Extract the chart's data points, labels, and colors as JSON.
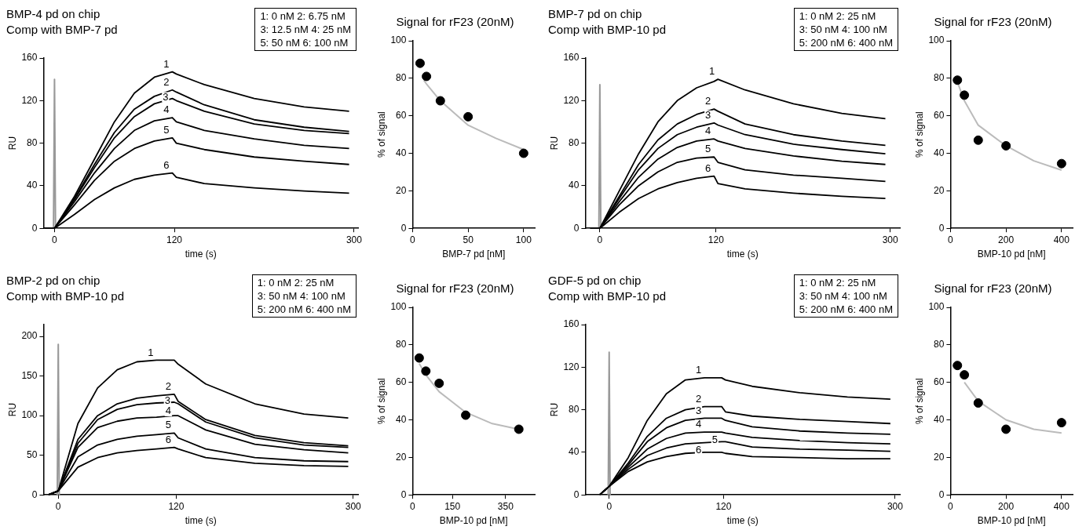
{
  "chart_data": [
    {
      "type": "line",
      "title": "BMP-4 pd on chip",
      "subtitle": "Comp with BMP-7 pd",
      "xlabel": "time (s)",
      "ylabel": "RU",
      "annotations": [
        "1: 0 nM 2: 6.75 nM",
        "3: 12.5 nM 4: 25 nM",
        "5: 50 nM 6: 100 nM"
      ],
      "x": [
        -10,
        0,
        20,
        40,
        60,
        80,
        100,
        118,
        122,
        150,
        200,
        250,
        295
      ],
      "xlim": [
        -11,
        304
      ],
      "xticks": [
        0,
        120,
        300
      ],
      "ylim": [
        0,
        160
      ],
      "yticks": [
        0,
        40,
        80,
        120,
        160
      ],
      "marker": "none",
      "line_style": "solid",
      "series": [
        {
          "name": "1",
          "color": "#000000",
          "values": [
            0,
            0,
            30,
            65,
            100,
            127,
            142,
            147,
            145,
            135,
            122,
            114,
            110
          ]
        },
        {
          "name": "2",
          "color": "#000000",
          "values": [
            0,
            0,
            28,
            60,
            90,
            112,
            124,
            130,
            128,
            116,
            102,
            95,
            91
          ]
        },
        {
          "name": "3",
          "color": "#000000",
          "values": [
            0,
            0,
            27,
            57,
            85,
            105,
            117,
            122,
            120,
            110,
            98,
            92,
            89
          ]
        },
        {
          "name": "4",
          "color": "#000000",
          "values": [
            0,
            0,
            25,
            52,
            75,
            92,
            101,
            104,
            100,
            92,
            84,
            78,
            75
          ]
        },
        {
          "name": "5",
          "color": "#000000",
          "values": [
            0,
            0,
            22,
            45,
            63,
            75,
            82,
            85,
            80,
            74,
            67,
            63,
            60
          ]
        },
        {
          "name": "6",
          "color": "#000000",
          "values": [
            0,
            0,
            13,
            27,
            38,
            46,
            50,
            52,
            48,
            42,
            38,
            35,
            33
          ]
        },
        {
          "color": "#999999",
          "x": [
            -1,
            0,
            1
          ],
          "values": [
            0,
            140,
            0
          ]
        }
      ]
    },
    {
      "type": "scatter",
      "title": "Signal for rF23 (20nM)",
      "xlabel": "BMP-7 pd [nM]",
      "ylabel": "% of signal",
      "xlim": [
        0,
        110
      ],
      "xticks": [
        0,
        50,
        100
      ],
      "ylim": [
        0,
        100
      ],
      "yticks": [
        0,
        20,
        40,
        60,
        80,
        100
      ],
      "marker": "circle",
      "series": [
        {
          "color": "#000000",
          "x": [
            6.75,
            12.5,
            25,
            50,
            100
          ],
          "values": [
            88,
            81,
            68,
            59.5,
            40
          ]
        },
        {
          "type": "line",
          "marker": "none",
          "color": "#bbbbbb",
          "x": [
            10,
            12.5,
            25,
            50,
            75,
            100
          ],
          "values": [
            79,
            77,
            68,
            55,
            48,
            42
          ]
        }
      ]
    },
    {
      "type": "line",
      "title": "BMP-7 pd on chip",
      "subtitle": "Comp with BMP-10 pd",
      "xlabel": "time (s)",
      "ylabel": "RU",
      "annotations": [
        "1: 0 nM 2: 25 nM",
        "3: 50 nM 4: 100 nM",
        "5: 200 nM 6: 400 nM"
      ],
      "x": [
        -10,
        0,
        20,
        40,
        60,
        80,
        100,
        118,
        122,
        150,
        200,
        250,
        295
      ],
      "xlim": [
        -15,
        310
      ],
      "xticks": [
        0,
        120,
        300
      ],
      "ylim": [
        0,
        160
      ],
      "yticks": [
        0,
        40,
        80,
        120,
        160
      ],
      "marker": "none",
      "line_style": "solid",
      "series": [
        {
          "name": "1",
          "color": "#000000",
          "values": [
            0,
            0,
            35,
            70,
            100,
            120,
            132,
            138,
            140,
            130,
            117,
            108,
            103
          ]
        },
        {
          "name": "2",
          "color": "#000000",
          "values": [
            0,
            0,
            30,
            60,
            83,
            98,
            107,
            112,
            110,
            98,
            88,
            82,
            78
          ]
        },
        {
          "name": "3",
          "color": "#000000",
          "values": [
            0,
            0,
            28,
            55,
            75,
            88,
            95,
            99,
            97,
            88,
            79,
            74,
            70
          ]
        },
        {
          "name": "4",
          "color": "#000000",
          "values": [
            0,
            0,
            25,
            48,
            65,
            76,
            82,
            84,
            82,
            75,
            68,
            63,
            60
          ]
        },
        {
          "name": "5",
          "color": "#000000",
          "values": [
            0,
            0,
            22,
            40,
            53,
            62,
            66,
            67,
            62,
            55,
            50,
            47,
            44
          ]
        },
        {
          "name": "6",
          "color": "#000000",
          "values": [
            0,
            0,
            15,
            28,
            37,
            43,
            47,
            49,
            42,
            37,
            33,
            30,
            28
          ]
        },
        {
          "color": "#999999",
          "x": [
            -1,
            0,
            1
          ],
          "values": [
            0,
            135,
            0
          ]
        }
      ]
    },
    {
      "type": "scatter",
      "title": "Signal for rF23 (20nM)",
      "xlabel": "BMP-10 pd [nM]",
      "ylabel": "% of signal",
      "xlim": [
        0,
        440
      ],
      "xticks": [
        0,
        200,
        400
      ],
      "ylim": [
        0,
        100
      ],
      "yticks": [
        0,
        20,
        40,
        60,
        80,
        100
      ],
      "marker": "circle",
      "series": [
        {
          "color": "#000000",
          "x": [
            25,
            50,
            100,
            200,
            400
          ],
          "values": [
            79,
            71,
            47,
            44,
            34.5
          ]
        },
        {
          "type": "line",
          "marker": "none",
          "color": "#bbbbbb",
          "x": [
            25,
            50,
            100,
            200,
            300,
            400
          ],
          "values": [
            78,
            68,
            55,
            44,
            36,
            31
          ]
        }
      ]
    },
    {
      "type": "line",
      "title": "BMP-2 pd on chip",
      "subtitle": "Comp with BMP-10 pd",
      "xlabel": "time (s)",
      "ylabel": "RU",
      "annotations": [
        "1: 0 nM 2: 25 nM",
        "3: 50 nM 4: 100 nM",
        "5: 200 nM 6: 400 nM"
      ],
      "x": [
        -10,
        0,
        20,
        40,
        60,
        80,
        100,
        118,
        122,
        150,
        200,
        250,
        295
      ],
      "xlim": [
        -15,
        305
      ],
      "xticks": [
        0,
        120,
        300
      ],
      "ylim": [
        0,
        215
      ],
      "yticks": [
        0,
        50,
        100,
        150,
        200
      ],
      "marker": "none",
      "line_style": "solid",
      "series": [
        {
          "name": "1",
          "color": "#000000",
          "values": [
            0,
            5,
            90,
            135,
            158,
            168,
            170,
            170,
            165,
            140,
            115,
            102,
            97
          ]
        },
        {
          "name": "2",
          "color": "#000000",
          "values": [
            0,
            5,
            70,
            100,
            115,
            122,
            125,
            127,
            118,
            95,
            75,
            66,
            62
          ]
        },
        {
          "name": "3",
          "color": "#000000",
          "values": [
            0,
            5,
            65,
            95,
            108,
            114,
            116,
            117,
            115,
            92,
            72,
            63,
            60
          ]
        },
        {
          "name": "4",
          "color": "#000000",
          "values": [
            0,
            5,
            60,
            85,
            93,
            97,
            98,
            100,
            100,
            82,
            64,
            57,
            53
          ]
        },
        {
          "name": "5",
          "color": "#000000",
          "values": [
            0,
            5,
            48,
            63,
            70,
            74,
            76,
            78,
            72,
            58,
            47,
            43,
            42
          ]
        },
        {
          "name": "6",
          "color": "#000000",
          "values": [
            0,
            5,
            35,
            47,
            53,
            56,
            58,
            60,
            58,
            47,
            40,
            37,
            36
          ]
        },
        {
          "color": "#999999",
          "x": [
            -1,
            0,
            1
          ],
          "values": [
            0,
            190,
            0
          ]
        }
      ]
    },
    {
      "type": "scatter",
      "title": "Signal for rF23 (20nM)",
      "xlabel": "BMP-10 pd [nM]",
      "ylabel": "% of signal",
      "xlim": [
        0,
        460
      ],
      "xticks": [
        0,
        150,
        350
      ],
      "ylim": [
        0,
        100
      ],
      "yticks": [
        0,
        20,
        40,
        60,
        80,
        100
      ],
      "marker": "circle",
      "series": [
        {
          "color": "#000000",
          "x": [
            25,
            50,
            100,
            200,
            400
          ],
          "values": [
            73,
            66,
            59.5,
            42.5,
            35
          ]
        },
        {
          "type": "line",
          "marker": "none",
          "color": "#bbbbbb",
          "x": [
            25,
            50,
            100,
            200,
            300,
            400
          ],
          "values": [
            70,
            64,
            55,
            44,
            38,
            35
          ]
        }
      ]
    },
    {
      "type": "line",
      "title": "GDF-5 pd on chip",
      "subtitle": "Comp with BMP-10 pd",
      "xlabel": "time (s)",
      "ylabel": "RU",
      "annotations": [
        "1: 0 nM 2: 25 nM",
        "3: 50 nM 4: 100 nM",
        "5: 200 nM 6: 400 nM"
      ],
      "x": [
        -10,
        0,
        20,
        40,
        60,
        80,
        100,
        118,
        122,
        150,
        200,
        250,
        295
      ],
      "xlim": [
        -25,
        305
      ],
      "xticks": [
        0,
        120,
        300
      ],
      "ylim": [
        0,
        160
      ],
      "yticks": [
        0,
        40,
        80,
        120,
        160
      ],
      "marker": "none",
      "line_style": "solid",
      "series": [
        {
          "name": "1",
          "color": "#000000",
          "values": [
            0,
            8,
            35,
            70,
            95,
            108,
            110,
            110,
            108,
            102,
            96,
            92,
            90
          ]
        },
        {
          "name": "2",
          "color": "#000000",
          "values": [
            0,
            8,
            30,
            55,
            72,
            80,
            83,
            83,
            78,
            74,
            71,
            69,
            67
          ]
        },
        {
          "name": "3",
          "color": "#000000",
          "values": [
            0,
            8,
            28,
            50,
            63,
            70,
            72,
            72,
            70,
            64,
            60,
            58,
            57
          ]
        },
        {
          "name": "4",
          "color": "#000000",
          "values": [
            0,
            8,
            26,
            43,
            53,
            58,
            59,
            59,
            58,
            54,
            51,
            49,
            48
          ]
        },
        {
          "name": "5",
          "color": "#000000",
          "values": [
            0,
            8,
            24,
            37,
            44,
            48,
            49,
            50,
            50,
            45,
            43,
            42,
            41
          ]
        },
        {
          "name": "6",
          "color": "#000000",
          "values": [
            0,
            8,
            22,
            31,
            36,
            39,
            40,
            40,
            39,
            36,
            35,
            34,
            34
          ]
        },
        {
          "color": "#999999",
          "x": [
            -1,
            0,
            1
          ],
          "values": [
            0,
            134,
            0
          ]
        }
      ]
    },
    {
      "type": "scatter",
      "title": "Signal for rF23 (20nM)",
      "xlabel": "BMP-10 pd [nM]",
      "ylabel": "% of signal",
      "xlim": [
        0,
        440
      ],
      "xticks": [
        0,
        200,
        400
      ],
      "ylim": [
        0,
        100
      ],
      "yticks": [
        0,
        20,
        40,
        60,
        80,
        100
      ],
      "marker": "circle",
      "series": [
        {
          "color": "#000000",
          "x": [
            25,
            50,
            100,
            200,
            400
          ],
          "values": [
            69,
            64,
            49,
            35,
            38.5
          ]
        },
        {
          "type": "line",
          "marker": "none",
          "color": "#bbbbbb",
          "x": [
            50,
            100,
            200,
            300,
            400
          ],
          "values": [
            60,
            50,
            40,
            35,
            33
          ]
        }
      ]
    }
  ]
}
